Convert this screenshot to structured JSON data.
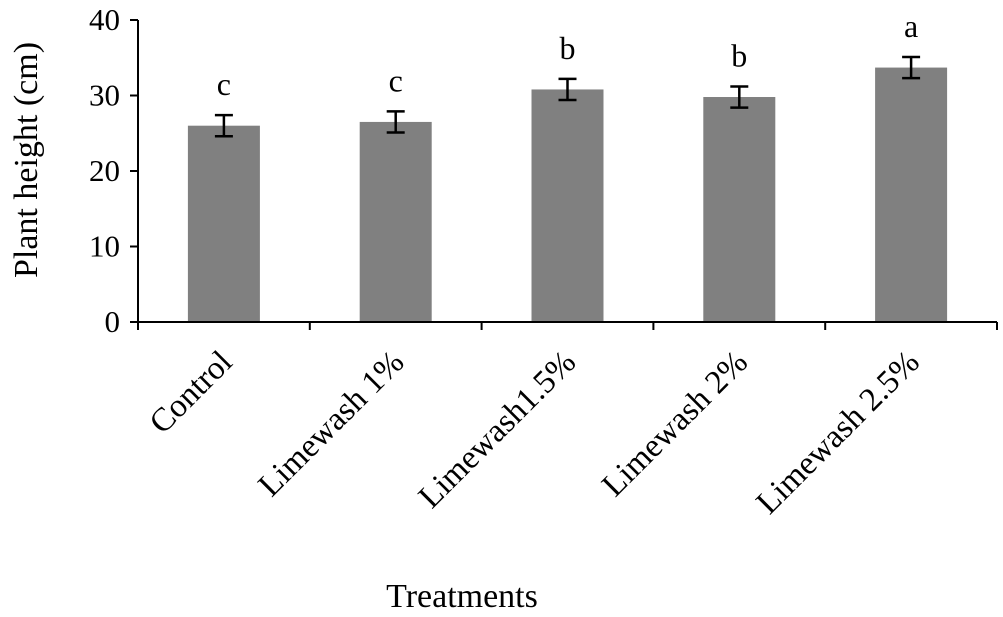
{
  "chart_data": {
    "type": "bar",
    "categories": [
      "Control",
      "Limewash 1%",
      "Limewash1.5%",
      "Limewash 2%",
      "Limewash 2.5%"
    ],
    "values": [
      26.0,
      26.5,
      30.8,
      29.8,
      33.7
    ],
    "errors": [
      1.4,
      1.4,
      1.4,
      1.4,
      1.4
    ],
    "significance": [
      "c",
      "c",
      "b",
      "b",
      "a"
    ],
    "xlabel": "Treatments",
    "ylabel": "Plant height (cm)",
    "ylim": [
      0,
      40
    ],
    "yticks": [
      "0",
      "10",
      "20",
      "30",
      "40"
    ],
    "bar_color": "#808080",
    "grid": false,
    "legend": "none"
  }
}
